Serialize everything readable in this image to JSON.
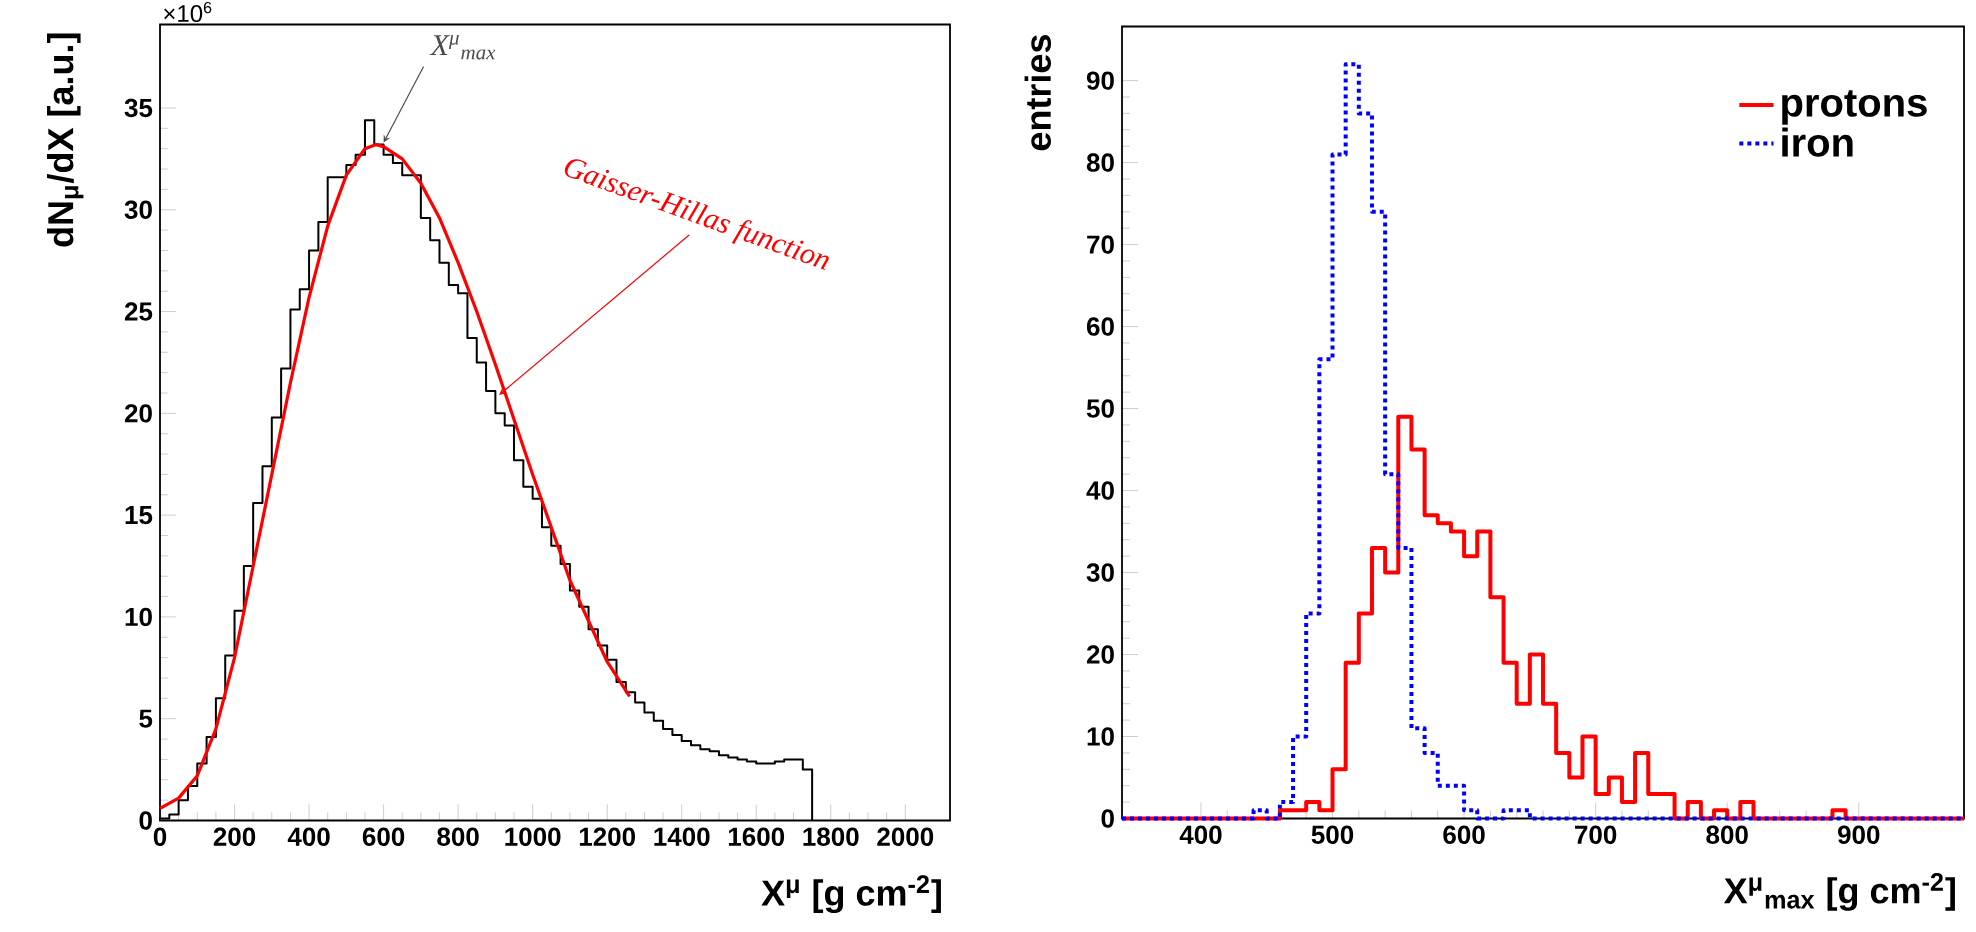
{
  "chart_data": [
    {
      "type": "histogram",
      "xlabel": "X$^{μ}$ [g cm$^{-2}$]",
      "ylabel": "dN$_{μ}$/dX [a.u.]",
      "bins": [
        0,
        25,
        50,
        75,
        100,
        125,
        150,
        175,
        200,
        225,
        250,
        275,
        300,
        325,
        350,
        375,
        400,
        425,
        450,
        475,
        500,
        525,
        550,
        575,
        600,
        625,
        650,
        675,
        700,
        725,
        750,
        775,
        800,
        825,
        850,
        875,
        900,
        925,
        950,
        975,
        1000,
        1025,
        1050,
        1075,
        1100,
        1125,
        1150,
        1175,
        1200,
        1225,
        1250,
        1275,
        1300,
        1325,
        1350,
        1375,
        1400,
        1425,
        1450,
        1475,
        1500,
        1525,
        1550,
        1575,
        1600,
        1625,
        1650,
        1675,
        1700,
        1725,
        1750
      ],
      "series": [
        {
          "color": "#000000",
          "values": [
            0.1,
            0.3,
            1.0,
            1.7,
            2.8,
            4.1,
            6.0,
            8.1,
            10.3,
            12.5,
            15.6,
            17.4,
            19.8,
            22.2,
            25.1,
            26.1,
            28.0,
            29.4,
            31.6,
            31.6,
            32.2,
            32.7,
            34.4,
            33.2,
            32.7,
            32.3,
            31.7,
            31.7,
            29.6,
            28.5,
            27.4,
            26.3,
            25.9,
            23.7,
            22.5,
            21.1,
            20.0,
            19.4,
            17.7,
            16.4,
            15.8,
            14.4,
            13.5,
            12.6,
            11.3,
            10.5,
            9.4,
            8.6,
            7.9,
            6.8,
            6.3,
            5.8,
            5.3,
            4.9,
            4.5,
            4.2,
            3.9,
            3.7,
            3.5,
            3.4,
            3.2,
            3.1,
            3.0,
            2.9,
            2.8,
            2.8,
            2.9,
            3.0,
            3.0,
            2.5
          ]
        },
        {
          "type": "line",
          "color": "#ff0000",
          "x": [
            0,
            50,
            100,
            150,
            200,
            250,
            300,
            350,
            400,
            450,
            500,
            550,
            580,
            600,
            650,
            700,
            750,
            800,
            850,
            900,
            950,
            1000,
            1050,
            1100,
            1150,
            1200,
            1260
          ],
          "values": [
            0.6,
            1.1,
            2.2,
            4.5,
            8.0,
            12.5,
            17.0,
            21.5,
            25.7,
            29.2,
            31.7,
            33.0,
            33.2,
            33.1,
            32.5,
            31.3,
            29.6,
            27.4,
            25.0,
            22.4,
            19.7,
            17.0,
            14.4,
            11.8,
            9.8,
            7.8,
            6.1
          ]
        }
      ],
      "xlim": [
        0,
        2120
      ],
      "ylim": [
        0,
        39.1
      ],
      "xticks": [
        0,
        200,
        400,
        600,
        800,
        1000,
        1200,
        1400,
        1600,
        1800,
        2000
      ],
      "yticks": [
        0,
        5,
        10,
        15,
        20,
        25,
        30,
        35
      ],
      "annotations": [
        "×10$^{6}$",
        {
          "text": "X$^{μ}$$_{max}$",
          "x": 600,
          "y": 33.3
        },
        {
          "text": "Gaisser-Hillas function",
          "x": 910,
          "y": 20.9
        }
      ]
    },
    {
      "type": "histogram",
      "xlabel": "X$^{μ}$$_{max}$ [g cm$^{-2}$]",
      "ylabel": "entries",
      "bins": [
        340,
        350,
        360,
        370,
        380,
        390,
        400,
        410,
        420,
        430,
        440,
        450,
        460,
        470,
        480,
        490,
        500,
        510,
        520,
        530,
        540,
        550,
        560,
        570,
        580,
        590,
        600,
        610,
        620,
        630,
        640,
        650,
        660,
        670,
        680,
        690,
        700,
        710,
        720,
        730,
        740,
        750,
        760,
        770,
        780,
        790,
        800,
        810,
        820,
        830,
        840,
        850,
        860,
        870,
        880,
        890,
        900,
        910,
        920,
        930,
        940,
        950,
        960,
        970,
        980
      ],
      "series": [
        {
          "name": "protons",
          "color": "#ff0000",
          "line_style": "solid",
          "values": [
            0,
            0,
            0,
            0,
            0,
            0,
            0,
            0,
            0,
            0,
            0,
            0,
            1,
            1,
            2,
            1,
            6,
            19,
            25,
            33,
            30,
            49,
            45,
            37,
            36,
            35,
            32,
            35,
            27,
            19,
            14,
            20,
            14,
            8,
            5,
            10,
            3,
            5,
            2,
            8,
            3,
            3,
            0,
            2,
            0,
            1,
            0,
            2,
            0,
            0,
            0,
            0,
            0,
            0,
            1,
            0,
            0,
            0,
            0,
            0,
            0,
            0,
            0,
            0
          ]
        },
        {
          "name": "iron",
          "color": "#0000ff",
          "line_style": "dotted",
          "values": [
            0,
            0,
            0,
            0,
            0,
            0,
            0,
            0,
            0,
            0,
            1,
            0,
            2,
            10,
            25,
            56,
            81,
            92,
            86,
            74,
            42,
            33,
            11,
            8,
            4,
            4,
            1,
            0,
            0,
            1,
            1,
            0,
            0,
            0,
            0,
            0,
            0,
            0,
            0,
            0,
            0,
            0,
            0,
            0,
            0,
            0,
            0,
            0,
            0,
            0,
            0,
            0,
            0,
            0,
            0,
            0,
            0,
            0,
            0,
            0,
            0,
            0,
            0,
            0
          ]
        }
      ],
      "xlim": [
        340,
        980
      ],
      "ylim": [
        0,
        96.6
      ],
      "xticks": [
        400,
        500,
        600,
        700,
        800,
        900
      ],
      "yticks": [
        0,
        10,
        20,
        30,
        40,
        50,
        60,
        70,
        80,
        90
      ],
      "legend": "top right"
    }
  ]
}
